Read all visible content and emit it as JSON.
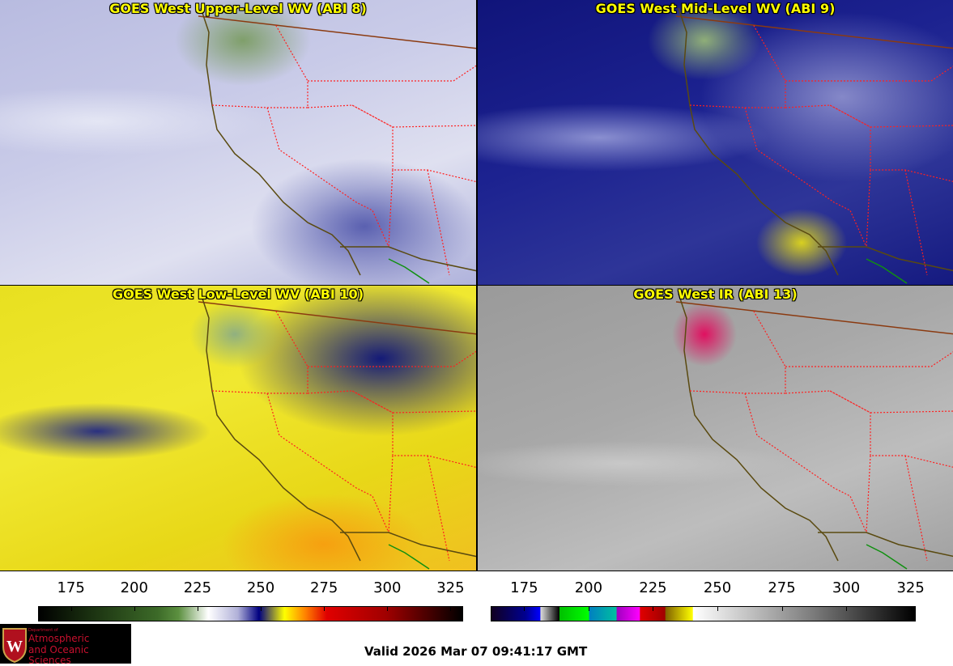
{
  "panels": [
    {
      "title": "GOES West Upper-Level WV (ABI 8)"
    },
    {
      "title": "GOES West Mid-Level WV (ABI 9)"
    },
    {
      "title": "GOES West Low-Level WV (ABI 10)"
    },
    {
      "title": "GOES West IR (ABI 13)"
    }
  ],
  "colorbars": [
    {
      "name": "water-vapor-colorbar",
      "range": [
        162,
        330
      ],
      "ticks": [
        "175",
        "200",
        "225",
        "250",
        "275",
        "300",
        "325"
      ]
    },
    {
      "name": "infrared-colorbar",
      "range": [
        162,
        327
      ],
      "ticks": [
        "175",
        "200",
        "225",
        "250",
        "275",
        "300",
        "325"
      ]
    }
  ],
  "logo": {
    "line1": "Department of",
    "line2": "Atmospheric",
    "line3": "and Oceanic Sciences"
  },
  "valid_time": "Valid 2026 Mar 07 09:41:17 GMT",
  "colors": {
    "title": "#ffff00",
    "state_borders": "#ff0000",
    "coast": "#5a4a10",
    "logo_text": "#c8102e"
  }
}
